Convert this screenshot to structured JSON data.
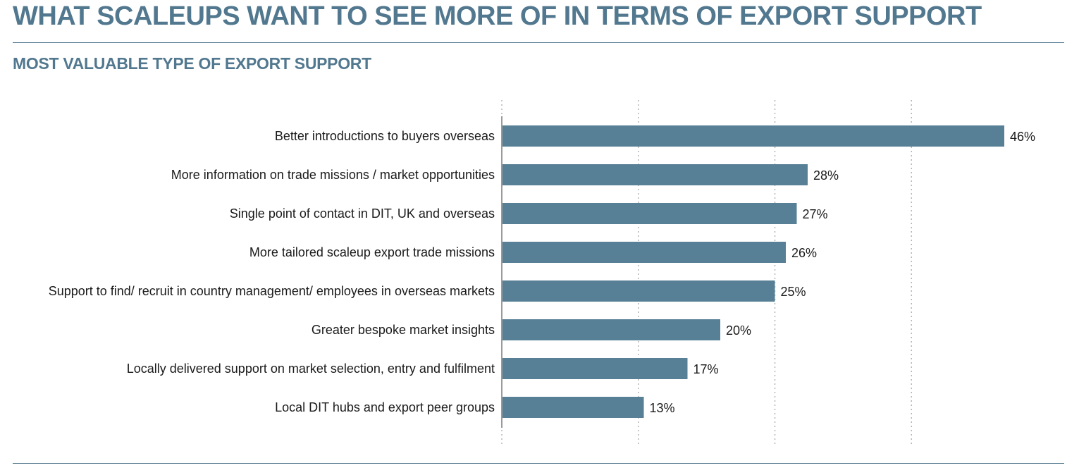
{
  "header": {
    "title": "WHAT SCALEUPS WANT TO SEE MORE OF IN TERMS OF EXPORT SUPPORT",
    "subtitle": "MOST VALUABLE TYPE OF EXPORT SUPPORT"
  },
  "colors": {
    "accent": "#52788f",
    "bar": "#577f95",
    "text": "#1a1a1a",
    "grid": "#b5b5b5"
  },
  "chart_data": {
    "type": "bar",
    "orientation": "horizontal",
    "categories": [
      "Better introductions to buyers overseas",
      "More information on trade missions / market opportunities",
      "Single point of contact in DIT, UK and overseas",
      "More tailored scaleup export trade missions",
      "Support to find/ recruit in country management/ employees in overseas markets",
      "Greater bespoke market insights",
      "Locally delivered support on market selection, entry and fulfilment",
      "Local DIT hubs and export peer groups"
    ],
    "values": [
      46,
      28,
      27,
      26,
      25,
      20,
      17,
      13
    ],
    "value_labels": [
      "46%",
      "28%",
      "27%",
      "26%",
      "25%",
      "20%",
      "17%",
      "13%"
    ],
    "xlim": [
      0,
      50
    ],
    "gridlines_at": [
      0,
      12.5,
      25,
      37.5
    ],
    "grid": true,
    "legend": "none"
  }
}
